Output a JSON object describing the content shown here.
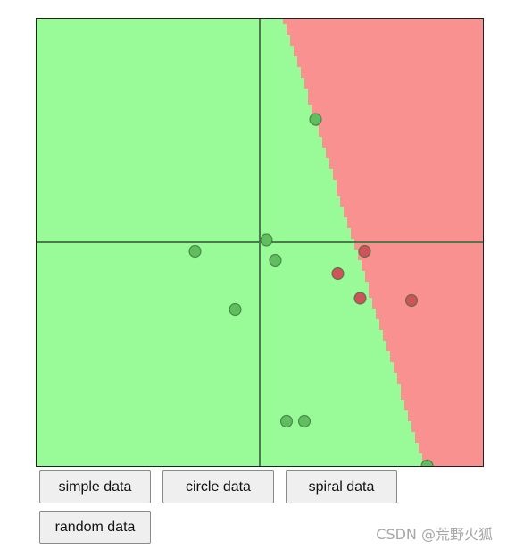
{
  "chart_data": {
    "type": "scatter",
    "title": "",
    "xlabel": "",
    "ylabel": "",
    "xlim": [
      -1,
      1
    ],
    "ylim": [
      -1,
      1
    ],
    "axes_at_origin": true,
    "grid": false,
    "legend": "none",
    "decision_boundary": {
      "description": "linear boundary separating green (left) region from red (right) region",
      "points": [
        [
          0.11,
          1.0
        ],
        [
          0.74,
          -1.0
        ]
      ]
    },
    "regions": [
      {
        "label": "green",
        "color": "#98fb98"
      },
      {
        "label": "red",
        "color": "#fa9191"
      }
    ],
    "series": [
      {
        "label": "green",
        "color": "#5fbf5f",
        "x": [
          0.25,
          -0.29,
          0.03,
          0.07,
          -0.11,
          0.12,
          0.2,
          0.75
        ],
        "y": [
          0.55,
          -0.04,
          0.01,
          -0.08,
          -0.3,
          -0.8,
          -0.8,
          -1.0
        ]
      },
      {
        "label": "red",
        "color": "#d0525a",
        "x": [
          0.47,
          0.35,
          0.45,
          0.68
        ],
        "y": [
          -0.04,
          -0.14,
          -0.25,
          -0.26
        ]
      }
    ]
  },
  "buttons": {
    "simple": "simple data",
    "circle": "circle data",
    "spiral": "spiral data",
    "random": "random data"
  },
  "watermark": "CSDN @荒野火狐",
  "colors": {
    "green_region": "#98fb98",
    "red_region": "#fa9191",
    "axis": "#4d7a4d"
  }
}
